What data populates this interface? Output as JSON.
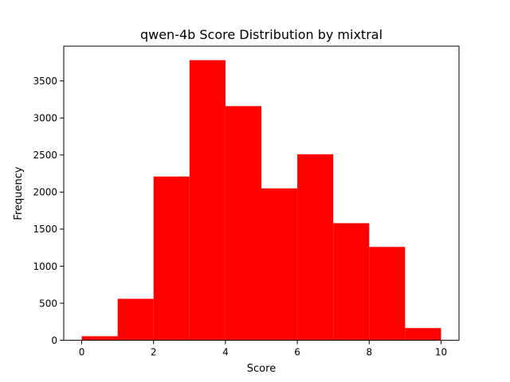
{
  "chart_data": {
    "type": "bar",
    "title": "qwen-4b Score Distribution by mixtral",
    "xlabel": "Score",
    "ylabel": "Frequency",
    "bins": [
      {
        "x0": 0,
        "x1": 1,
        "value": 55
      },
      {
        "x0": 1,
        "x1": 2,
        "value": 560
      },
      {
        "x0": 2,
        "x1": 3,
        "value": 2210
      },
      {
        "x0": 3,
        "x1": 4,
        "value": 3780
      },
      {
        "x0": 4,
        "x1": 5,
        "value": 3160
      },
      {
        "x0": 5,
        "x1": 6,
        "value": 2050
      },
      {
        "x0": 6,
        "x1": 7,
        "value": 2510
      },
      {
        "x0": 7,
        "x1": 8,
        "value": 1580
      },
      {
        "x0": 8,
        "x1": 9,
        "value": 1260
      },
      {
        "x0": 9,
        "x1": 10,
        "value": 165
      }
    ],
    "xlim": [
      -0.5,
      10.5
    ],
    "ylim": [
      0,
      3969
    ],
    "xticks": [
      0,
      2,
      4,
      6,
      8,
      10
    ],
    "yticks": [
      0,
      500,
      1000,
      1500,
      2000,
      2500,
      3000,
      3500
    ],
    "bar_color": "#ff0000",
    "grid": false,
    "legend": "none"
  }
}
